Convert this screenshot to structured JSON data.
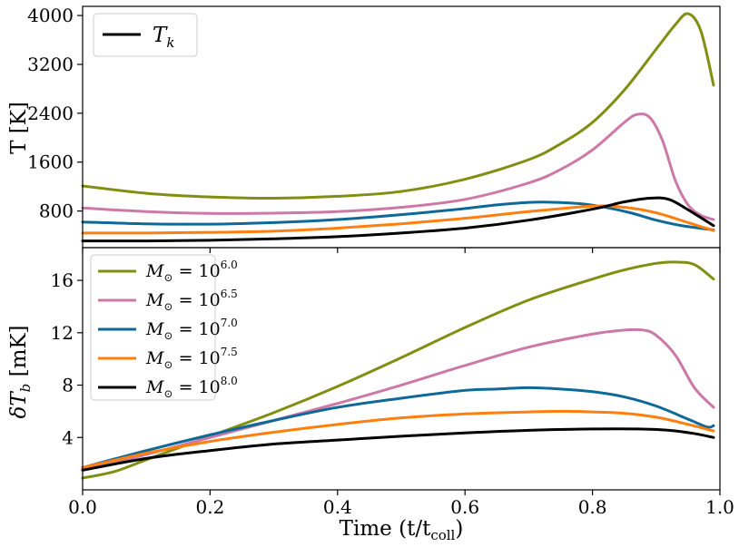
{
  "chart_data": [
    {
      "type": "line",
      "ylabel": "T [K]",
      "xlim": [
        0.0,
        1.0
      ],
      "ylim": [
        200,
        4150
      ],
      "yticks": [
        800,
        1600,
        2400,
        3200,
        4000
      ],
      "ytick_labels": [
        "800",
        "1600",
        "2400",
        "3200",
        "4000"
      ],
      "legend": {
        "placement": "top-left",
        "label": "T_k",
        "label_main": "T",
        "label_sub": "k",
        "color": "#000000"
      },
      "series": [
        {
          "color": "#7f8f12",
          "x": [
            0,
            0.1,
            0.2,
            0.3,
            0.4,
            0.5,
            0.6,
            0.7,
            0.75,
            0.8,
            0.85,
            0.9,
            0.93,
            0.95,
            0.97,
            0.99
          ],
          "values": [
            1210,
            1090,
            1030,
            1010,
            1040,
            1120,
            1320,
            1640,
            1900,
            2250,
            2780,
            3450,
            3850,
            4030,
            3750,
            2860
          ]
        },
        {
          "color": "#cc79a7",
          "x": [
            0,
            0.1,
            0.2,
            0.3,
            0.4,
            0.5,
            0.6,
            0.7,
            0.75,
            0.8,
            0.85,
            0.87,
            0.89,
            0.91,
            0.93,
            0.95,
            0.97,
            0.99
          ],
          "values": [
            850,
            790,
            760,
            765,
            790,
            860,
            990,
            1260,
            1480,
            1800,
            2250,
            2380,
            2330,
            1950,
            1300,
            900,
            730,
            660
          ]
        },
        {
          "color": "#0e6898",
          "x": [
            0,
            0.1,
            0.2,
            0.3,
            0.4,
            0.5,
            0.6,
            0.65,
            0.7,
            0.73,
            0.78,
            0.82,
            0.86,
            0.9,
            0.94,
            0.99
          ],
          "values": [
            620,
            590,
            585,
            610,
            660,
            740,
            840,
            900,
            940,
            945,
            920,
            860,
            770,
            650,
            560,
            490
          ]
        },
        {
          "color": "#ff7f0e",
          "x": [
            0,
            0.1,
            0.2,
            0.3,
            0.4,
            0.5,
            0.6,
            0.7,
            0.8,
            0.85,
            0.9,
            0.95,
            0.99
          ],
          "values": [
            440,
            440,
            450,
            470,
            520,
            590,
            680,
            790,
            880,
            860,
            770,
            610,
            480
          ]
        },
        {
          "color": "#000000",
          "x": [
            0,
            0.1,
            0.2,
            0.3,
            0.4,
            0.5,
            0.6,
            0.7,
            0.8,
            0.85,
            0.89,
            0.92,
            0.95,
            0.99
          ],
          "values": [
            310,
            310,
            320,
            345,
            380,
            440,
            520,
            650,
            830,
            950,
            1010,
            990,
            820,
            560
          ]
        }
      ]
    },
    {
      "type": "line",
      "xlabel": "Time (t/t_coll)",
      "xlabel_main": "Time (t/t",
      "xlabel_sub": "coll",
      "xlabel_tail": ")",
      "ylabel": "δT_b [mK]",
      "ylabel_main": "δT",
      "ylabel_sub": "b",
      "ylabel_tail": " [mK]",
      "xlim": [
        0.0,
        1.0
      ],
      "ylim": [
        0,
        18.5
      ],
      "xticks": [
        0.0,
        0.2,
        0.4,
        0.6,
        0.8,
        1.0
      ],
      "xtick_labels": [
        "0.0",
        "0.2",
        "0.4",
        "0.6",
        "0.8",
        "1.0"
      ],
      "yticks": [
        4,
        8,
        12,
        16
      ],
      "ytick_labels": [
        "4",
        "8",
        "12",
        "16"
      ],
      "legend_placement": "top-left",
      "series": [
        {
          "name": "M⊙ = 10^6.0",
          "name_main": "M",
          "name_sub": "⊙",
          "name_mid": " = 10",
          "name_sup": "6.0",
          "color": "#7f8f12",
          "x": [
            0,
            0.05,
            0.1,
            0.2,
            0.3,
            0.4,
            0.5,
            0.6,
            0.7,
            0.8,
            0.85,
            0.9,
            0.93,
            0.96,
            0.99
          ],
          "values": [
            0.9,
            1.4,
            2.3,
            4.1,
            5.9,
            7.9,
            10.1,
            12.4,
            14.5,
            16.1,
            16.8,
            17.3,
            17.4,
            17.2,
            16.1
          ]
        },
        {
          "name": "M⊙ = 10^6.5",
          "name_main": "M",
          "name_sub": "⊙",
          "name_mid": " = 10",
          "name_sup": "6.5",
          "color": "#cc79a7",
          "x": [
            0,
            0.05,
            0.1,
            0.2,
            0.3,
            0.4,
            0.5,
            0.6,
            0.7,
            0.8,
            0.85,
            0.88,
            0.9,
            0.93,
            0.96,
            0.99
          ],
          "values": [
            1.6,
            2.1,
            2.7,
            4.0,
            5.3,
            6.6,
            8.0,
            9.5,
            10.9,
            11.9,
            12.2,
            12.2,
            11.8,
            10.3,
            7.8,
            6.3
          ]
        },
        {
          "name": "M⊙ = 10^7.0",
          "name_main": "M",
          "name_sub": "⊙",
          "name_mid": " = 10",
          "name_sup": "7.0",
          "color": "#0e6898",
          "x": [
            0,
            0.1,
            0.2,
            0.3,
            0.4,
            0.5,
            0.6,
            0.65,
            0.7,
            0.75,
            0.8,
            0.85,
            0.9,
            0.95,
            0.98,
            0.99
          ],
          "values": [
            1.7,
            3.0,
            4.2,
            5.3,
            6.3,
            7.0,
            7.6,
            7.7,
            7.8,
            7.7,
            7.5,
            7.1,
            6.4,
            5.4,
            4.8,
            4.9
          ]
        },
        {
          "name": "M⊙ = 10^7.5",
          "name_main": "M",
          "name_sub": "⊙",
          "name_mid": " = 10",
          "name_sup": "7.5",
          "color": "#ff7f0e",
          "x": [
            0,
            0.1,
            0.2,
            0.3,
            0.4,
            0.5,
            0.6,
            0.7,
            0.76,
            0.8,
            0.85,
            0.9,
            0.95,
            0.99
          ],
          "values": [
            1.7,
            2.8,
            3.7,
            4.4,
            5.0,
            5.5,
            5.8,
            5.95,
            6.0,
            5.95,
            5.85,
            5.55,
            5.0,
            4.5
          ]
        },
        {
          "name": "M⊙ = 10^8.0",
          "name_main": "M",
          "name_sub": "⊙",
          "name_mid": " = 10",
          "name_sup": "8.0",
          "color": "#000000",
          "x": [
            0,
            0.1,
            0.2,
            0.3,
            0.4,
            0.5,
            0.6,
            0.7,
            0.8,
            0.87,
            0.92,
            0.96,
            0.99
          ],
          "values": [
            1.5,
            2.4,
            3.0,
            3.5,
            3.8,
            4.1,
            4.35,
            4.55,
            4.65,
            4.65,
            4.55,
            4.3,
            4.0
          ]
        }
      ]
    }
  ]
}
